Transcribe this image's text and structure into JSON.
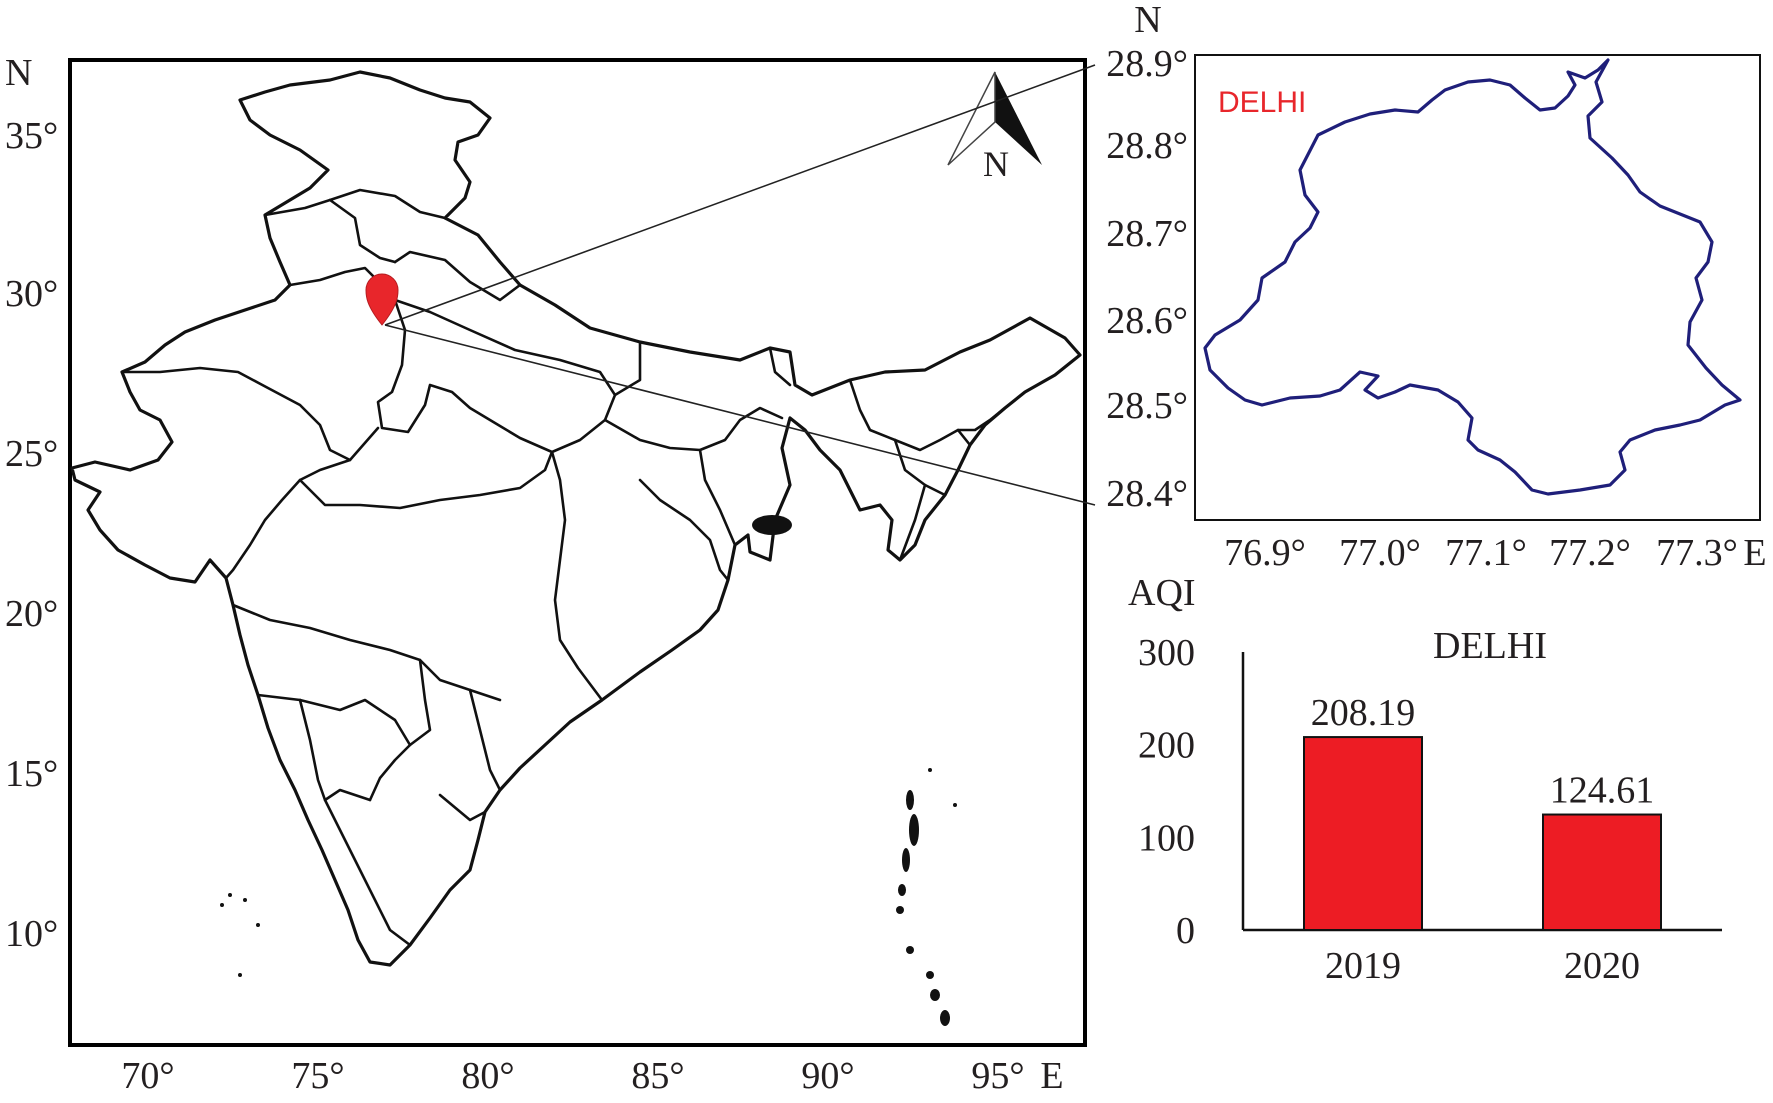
{
  "india_map": {
    "north_label": "N",
    "east_label": "E",
    "lat_ticks": [
      "35°",
      "30°",
      "25°",
      "20°",
      "15°",
      "10°"
    ],
    "lon_ticks": [
      "70°",
      "75°",
      "80°",
      "85°",
      "90°",
      "95°"
    ],
    "compass_label": "N",
    "marker_color": "#e8262b"
  },
  "inset_map": {
    "north_label": "N",
    "east_label": "E",
    "title": "DELHI",
    "title_color": "#e8262b",
    "border_color": "#1f1f7a",
    "lat_ticks": [
      "28.9°",
      "28.8°",
      "28.7°",
      "28.6°",
      "28.5°",
      "28.4°"
    ],
    "lon_ticks": [
      "76.9°",
      "77.0°",
      "77.1°",
      "77.2°",
      "77.3°"
    ]
  },
  "chart_data": {
    "type": "bar",
    "title": "DELHI",
    "ylabel": "AQI",
    "xlabel": "",
    "categories": [
      "2019",
      "2020"
    ],
    "values": [
      208.19,
      124.61
    ],
    "value_labels": [
      "208.19",
      "124.61"
    ],
    "ylim": [
      0,
      300
    ],
    "yticks": [
      0,
      100,
      200,
      300
    ],
    "bar_color": "#ed1c24",
    "grid": false,
    "legend": "none"
  }
}
